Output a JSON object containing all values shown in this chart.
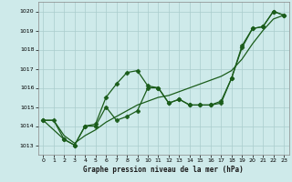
{
  "title": "Graphe pression niveau de la mer (hPa)",
  "bg_color": "#ceeaea",
  "grid_color": "#aacccc",
  "line_color": "#1a5c1a",
  "xlim": [
    -0.5,
    23.5
  ],
  "ylim": [
    1012.5,
    1020.5
  ],
  "yticks": [
    1013,
    1014,
    1015,
    1016,
    1017,
    1018,
    1019,
    1020
  ],
  "xticks": [
    0,
    1,
    2,
    3,
    4,
    5,
    6,
    7,
    8,
    9,
    10,
    11,
    12,
    13,
    14,
    15,
    16,
    17,
    18,
    19,
    20,
    21,
    22,
    23
  ],
  "series": [
    {
      "x": [
        0,
        1,
        2,
        3,
        4,
        5,
        6,
        7,
        8,
        9,
        10,
        11,
        12,
        13,
        14,
        15,
        16,
        17,
        18,
        19,
        20,
        21,
        22,
        23
      ],
      "y": [
        1014.3,
        1014.3,
        1013.5,
        1013.1,
        1013.5,
        1013.8,
        1014.2,
        1014.5,
        1014.8,
        1015.1,
        1015.3,
        1015.5,
        1015.6,
        1015.8,
        1016.0,
        1016.2,
        1016.4,
        1016.6,
        1016.9,
        1017.5,
        1018.3,
        1019.0,
        1019.6,
        1019.8
      ],
      "marker": null,
      "markersize": 0,
      "linewidth": 0.9
    },
    {
      "x": [
        0,
        1,
        2,
        3,
        4,
        5,
        6,
        7,
        8,
        9,
        10,
        11,
        12,
        13,
        14,
        15,
        16,
        17,
        18,
        19,
        20,
        21,
        22,
        23
      ],
      "y": [
        1014.3,
        1014.3,
        1013.3,
        1013.0,
        1014.0,
        1014.1,
        1015.5,
        1016.2,
        1016.8,
        1016.9,
        1016.1,
        1016.0,
        1015.2,
        1015.4,
        1015.1,
        1015.1,
        1015.1,
        1015.2,
        1016.5,
        1018.1,
        1019.1,
        1019.2,
        1020.0,
        1019.8
      ],
      "marker": "D",
      "markersize": 2.5,
      "linewidth": 0.9
    },
    {
      "x": [
        0,
        2,
        3,
        4,
        5,
        6,
        7,
        8,
        9,
        10,
        11,
        12,
        13,
        14,
        15,
        16,
        17,
        18,
        19,
        20,
        21,
        22,
        23
      ],
      "y": [
        1014.3,
        1013.3,
        1013.0,
        1014.0,
        1014.0,
        1015.0,
        1014.3,
        1014.5,
        1014.8,
        1016.0,
        1016.0,
        1015.2,
        1015.4,
        1015.1,
        1015.1,
        1015.1,
        1015.3,
        1016.5,
        1018.2,
        1019.1,
        1019.2,
        1020.0,
        1019.8
      ],
      "marker": "P",
      "markersize": 3,
      "linewidth": 0.9
    }
  ]
}
